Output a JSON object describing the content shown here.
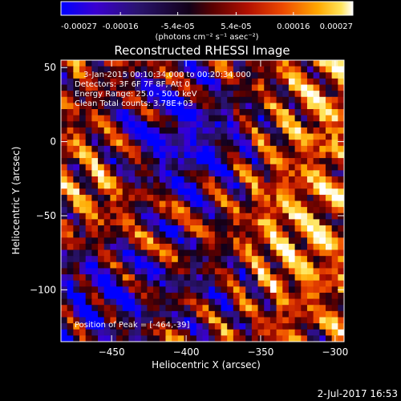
{
  "colorbar": {
    "tick_labels": [
      "-0.00027",
      "-0.00016",
      "-5.4e-05",
      "5.4e-05",
      "0.00016",
      "0.00027"
    ],
    "ticks": [
      -0.00027,
      -0.00016,
      -5.4e-05,
      5.4e-05,
      0.00016,
      0.00027
    ],
    "range": [
      -0.00027,
      0.00027
    ],
    "unit_label": "(photons cm⁻² s⁻¹ asec⁻²)",
    "colormap": [
      "#0000ff",
      "#3a00d0",
      "#2a1470",
      "#120018",
      "#5a0000",
      "#b21000",
      "#ee4a00",
      "#ffa800",
      "#ffe45a",
      "#ffffff"
    ]
  },
  "plot": {
    "title": "Reconstructed RHESSI Image",
    "xlabel": "Heliocentric X (arcsec)",
    "ylabel": "Heliocentric Y (arcsec)",
    "xlim": [
      -484,
      -294
    ],
    "ylim": [
      -135,
      55
    ],
    "xtick_values": [
      -450,
      -400,
      -350,
      -300
    ],
    "xtick_labels": [
      "−450",
      "−400",
      "−350",
      "−300"
    ],
    "ytick_values": [
      50,
      0,
      -50,
      -100
    ],
    "ytick_labels": [
      "50",
      "0",
      "−50",
      "−100"
    ]
  },
  "annotations": {
    "time_range": "3-Jan-2015 00:10:34.000 to 00:20:34.000",
    "detectors": "Detectors: 3F 6F 7F 8F, Att 0",
    "energy": "Energy Range: 25.0 - 50.0 keV",
    "clean": "Clean     Total counts: 3.78E+03",
    "peak": "Position of Peak = [-464,-39]"
  },
  "footer": {
    "timestamp": "2-Jul-2017 16:53"
  }
}
